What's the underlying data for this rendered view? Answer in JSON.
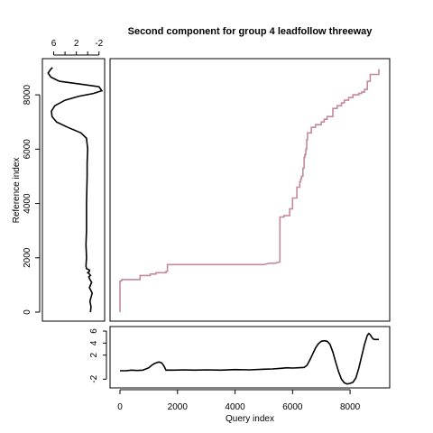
{
  "chart_data": {
    "type": "line",
    "title": "Second component for group 4 leadfollow threeway",
    "xlabel": "Query index",
    "ylabel": "Reference index",
    "panels": {
      "main": {
        "xlim": [
          0,
          9000
        ],
        "ylim": [
          0,
          9000
        ],
        "line_color": "#c48a9a",
        "series": [
          {
            "x": [
              0,
              0,
              60,
              60,
              700,
              700,
              1050,
              1050,
              1250,
              1250,
              1600,
              1600,
              1650,
              1650,
              4400,
              5000,
              5200,
              5400,
              5560,
              5560,
              5700,
              5700,
              5900,
              5900,
              6000,
              6000,
              6150,
              6150,
              6250,
              6250,
              6280,
              6280,
              6310,
              6310,
              6360,
              6360,
              6400,
              6400,
              6430,
              6430,
              6460,
              6460,
              6490,
              6490,
              6520,
              6520,
              6650,
              6650,
              6800,
              6800,
              7000,
              7000,
              7100,
              7100,
              7200,
              7200,
              7400,
              7400,
              7550,
              7550,
              7700,
              7700,
              7800,
              7800,
              7950,
              7950,
              8100,
              8100,
              8300,
              8300,
              8400,
              8400,
              8500,
              8500,
              8600,
              8600,
              8700,
              8700,
              9000,
              9000
            ],
            "y": [
              0,
              1150,
              1150,
              1200,
              1200,
              1350,
              1350,
              1400,
              1400,
              1450,
              1450,
              1500,
              1500,
              1750,
              1750,
              1750,
              1800,
              1800,
              1850,
              3500,
              3500,
              3550,
              3550,
              3800,
              3800,
              4200,
              4200,
              4600,
              4600,
              4800,
              4800,
              4900,
              4900,
              5000,
              5000,
              5300,
              5300,
              5700,
              5700,
              5800,
              5800,
              6000,
              6000,
              6350,
              6350,
              6600,
              6600,
              6800,
              6800,
              6900,
              6900,
              7000,
              7000,
              7100,
              7100,
              7200,
              7200,
              7500,
              7500,
              7600,
              7600,
              7700,
              7700,
              7800,
              7800,
              7900,
              7900,
              8000,
              8000,
              8050,
              8050,
              8100,
              8100,
              8200,
              8200,
              8500,
              8500,
              8750,
              8750,
              8950
            ]
          }
        ]
      },
      "bottom": {
        "xlim": [
          0,
          9000
        ],
        "ylim": [
          -3,
          6.3
        ],
        "yticks": [
          -2,
          2,
          4,
          6
        ],
        "line_color": "#000000",
        "series": [
          {
            "x": [
              0,
              200,
              400,
              600,
              800,
              900,
              1000,
              1100,
              1200,
              1300,
              1350,
              1400,
              1450,
              1500,
              1550,
              1600,
              1700,
              1900,
              2200,
              2600,
              3000,
              3500,
              4000,
              4500,
              5000,
              5300,
              5600,
              5800,
              6000,
              6200,
              6400,
              6500,
              6600,
              6700,
              6800,
              6900,
              7000,
              7100,
              7200,
              7300,
              7400,
              7500,
              7600,
              7700,
              7800,
              7900,
              8000,
              8100,
              8200,
              8300,
              8400,
              8500,
              8600,
              8650,
              8700,
              8750,
              8800,
              8850,
              8900,
              9000
            ],
            "y": [
              -0.6,
              -0.6,
              -0.5,
              -0.55,
              -0.5,
              -0.3,
              -0.1,
              0.3,
              0.6,
              0.8,
              0.85,
              0.8,
              0.7,
              0.4,
              0.0,
              -0.5,
              -0.5,
              -0.5,
              -0.45,
              -0.5,
              -0.45,
              -0.5,
              -0.4,
              -0.45,
              -0.35,
              -0.3,
              -0.2,
              -0.1,
              -0.15,
              -0.1,
              -0.05,
              0.3,
              1.2,
              2.2,
              3.2,
              3.9,
              4.3,
              4.4,
              4.3,
              3.8,
              2.5,
              0.8,
              -0.8,
              -2.0,
              -2.6,
              -2.8,
              -2.7,
              -2.5,
              -1.8,
              -0.2,
              1.8,
              3.8,
              5.3,
              5.6,
              5.4,
              5.0,
              4.7,
              4.6,
              4.6,
              4.6
            ]
          }
        ]
      },
      "left": {
        "xlim": [
          8,
          -3
        ],
        "xticks": [
          6,
          2,
          -2
        ],
        "ylim": [
          0,
          9000
        ],
        "line_color": "#000000",
        "series": [
          {
            "x": [
              -0.5,
              -0.6,
              -0.4,
              -0.8,
              -0.3,
              -0.7,
              -0.4,
              -0.2,
              -0.5,
              -0.3,
              0.0,
              -0.3,
              -0.3,
              0.2,
              0.3,
              0.2,
              0.3,
              0.2,
              0.2,
              0.1,
              0.1,
              0.0,
              0.2,
              1.2,
              3.5,
              5.5,
              6.3,
              6.4,
              5.8,
              4.0,
              1.5,
              -1.0,
              -2.5,
              -2.0,
              1.5,
              5.0,
              6.5,
              7.0,
              6.5,
              6.2
            ],
            "y": [
              0,
              200,
              400,
              700,
              900,
              1100,
              1200,
              1300,
              1350,
              1400,
              1450,
              1500,
              1550,
              1600,
              1700,
              2000,
              2500,
              3000,
              4000,
              5000,
              5500,
              6000,
              6400,
              6600,
              6800,
              7000,
              7200,
              7400,
              7600,
              7800,
              7950,
              8050,
              8150,
              8300,
              8400,
              8500,
              8650,
              8800,
              8950,
              9000
            ]
          }
        ]
      }
    },
    "main_xticks": [
      "0",
      "2000",
      "4000",
      "6000",
      "8000"
    ],
    "main_yticks": [
      "0",
      "2000",
      "4000",
      "6000",
      "8000"
    ],
    "bottom_yticks": [
      "-2",
      "2",
      "4",
      "6"
    ],
    "left_xticks": [
      "6",
      "2",
      "-2"
    ],
    "grid": false,
    "legend": "none"
  }
}
